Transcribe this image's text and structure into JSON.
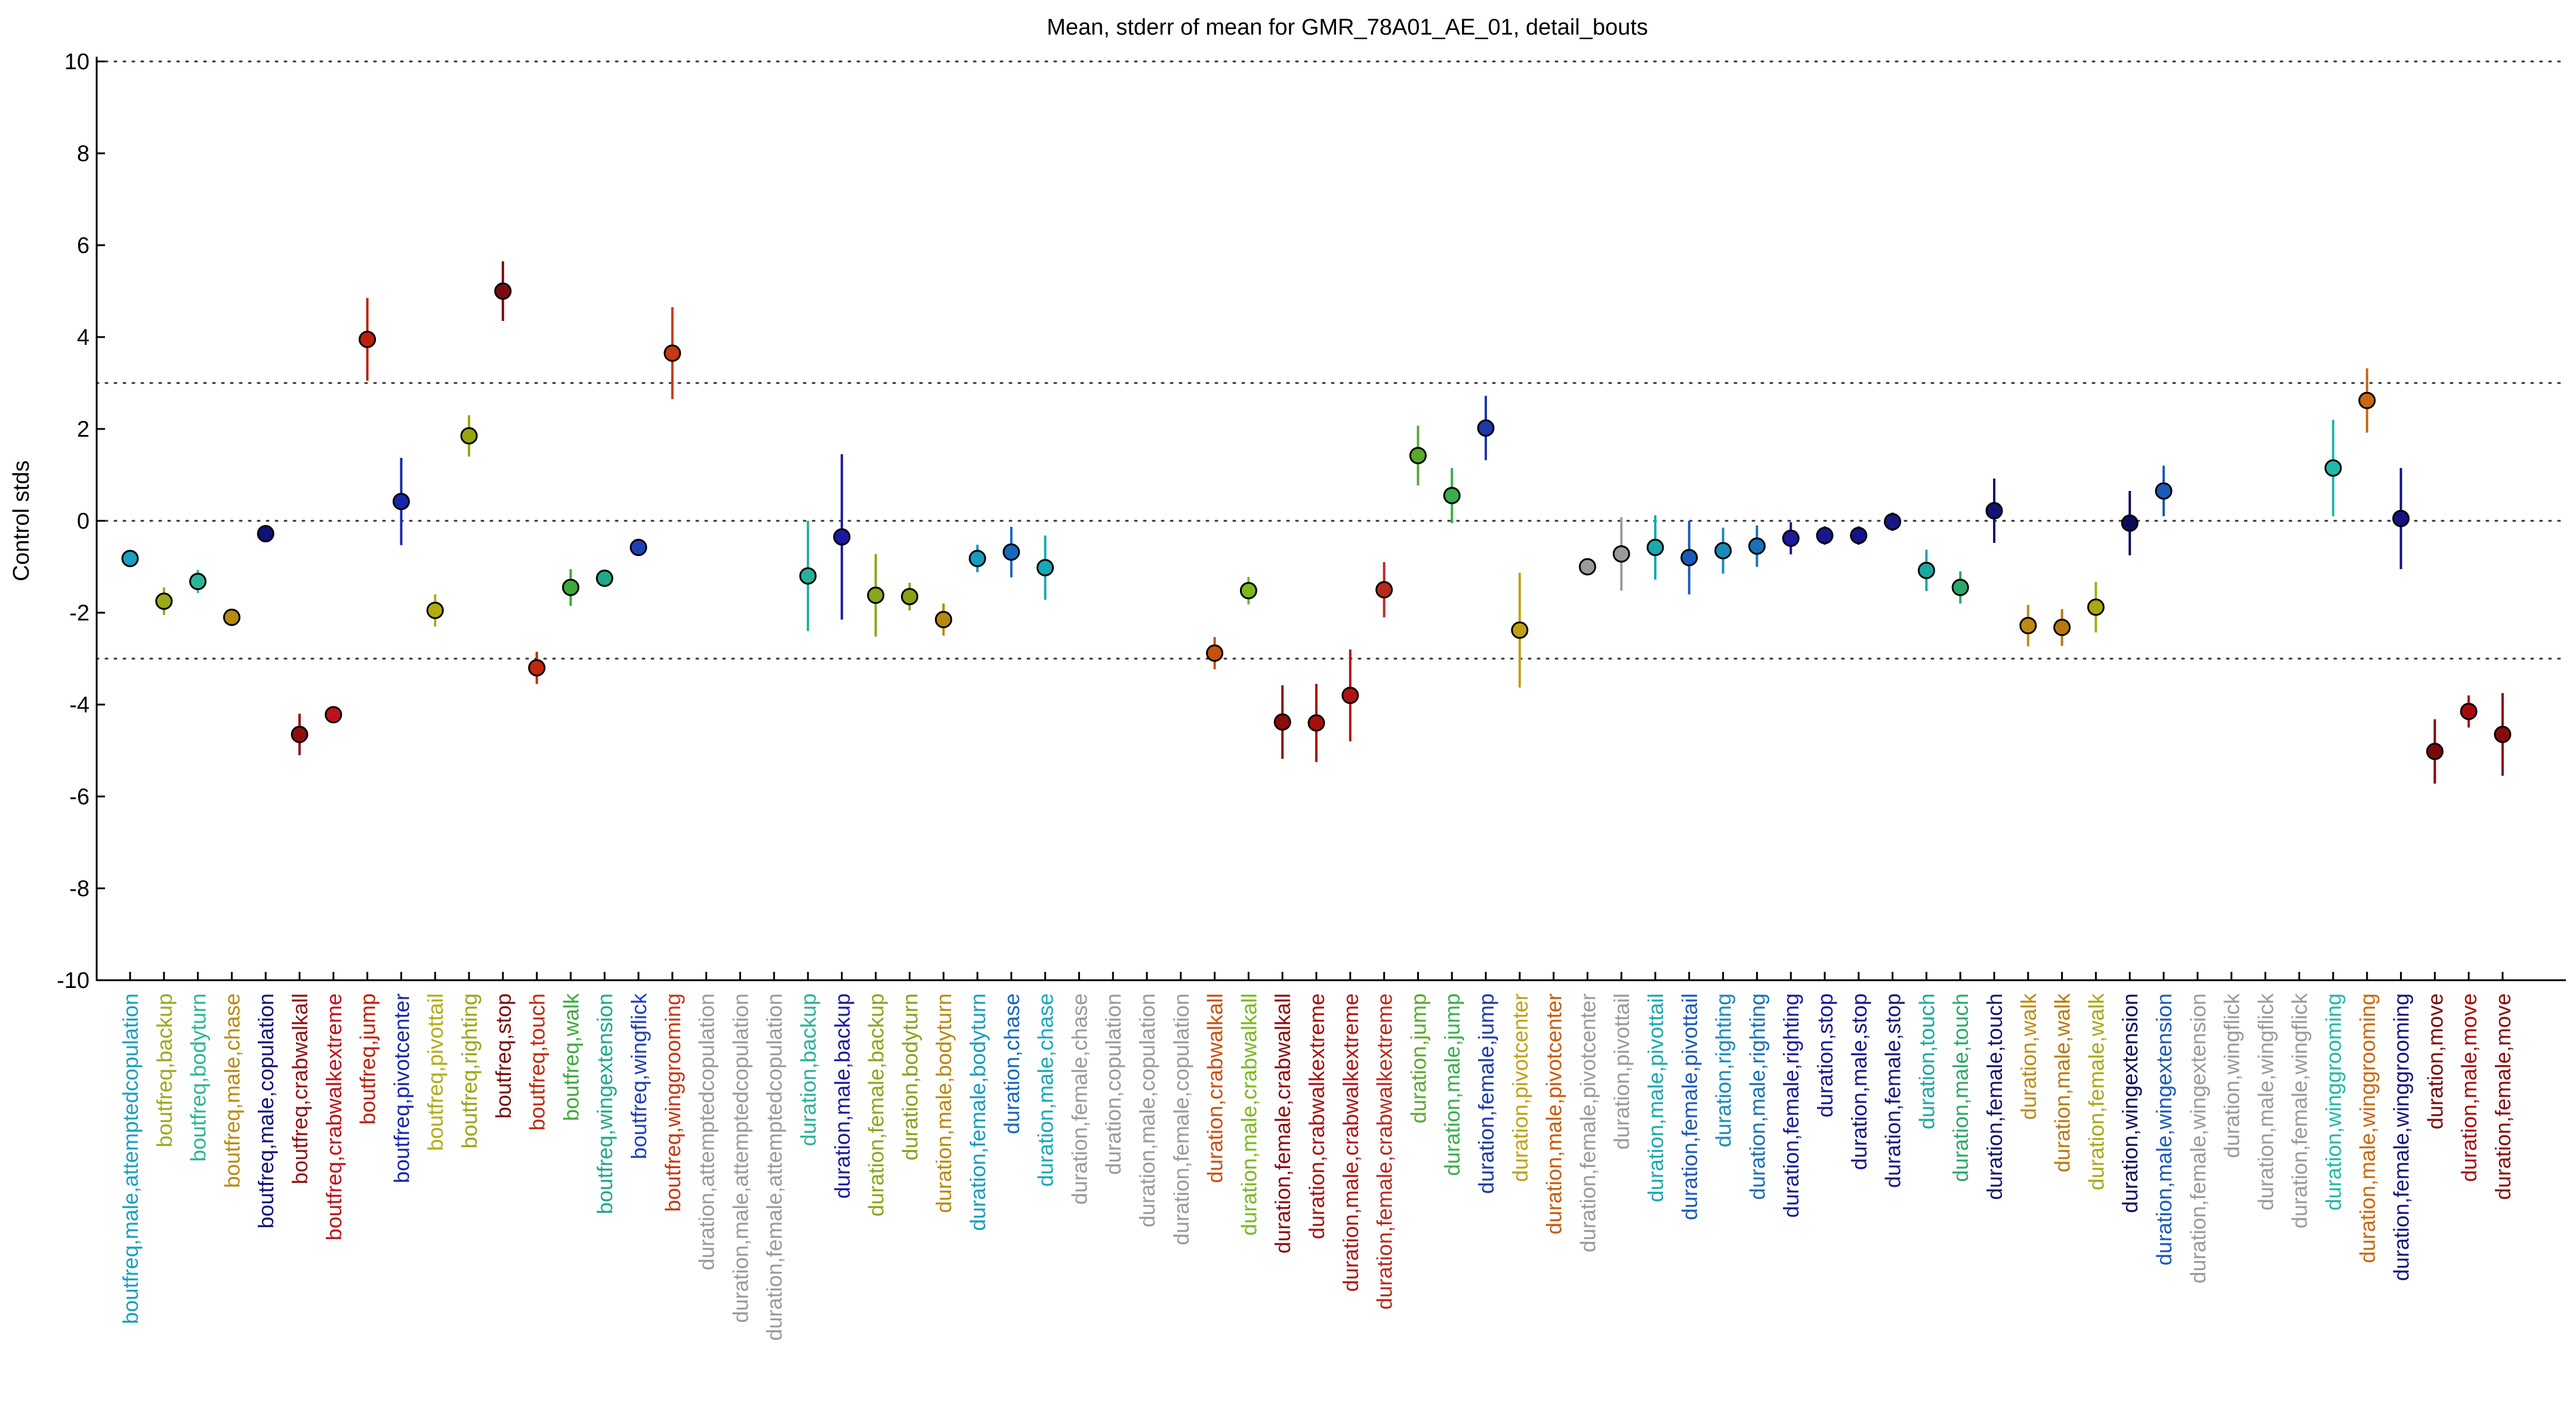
{
  "chart_data": {
    "type": "scatter",
    "title": "Mean, stderr of mean for GMR_78A01_AE_01, detail_bouts",
    "ylabel": "Control stds",
    "ylim": [
      -10,
      10
    ],
    "yticks": [
      10,
      8,
      6,
      4,
      2,
      0,
      -2,
      -4,
      -6,
      -8,
      -10
    ],
    "hlines": [
      10,
      3,
      0,
      -3,
      -10
    ],
    "legend": "none",
    "categories": [
      "boutfreq,male,attemptedcopulation",
      "boutfreq,backup",
      "boutfreq,bodyturn",
      "boutfreq,male,chase",
      "boutfreq,male,copulation",
      "boutfreq,crabwalkall",
      "boutfreq,crabwalkextreme",
      "boutfreq,jump",
      "boutfreq,pivotcenter",
      "boutfreq,pivottail",
      "boutfreq,righting",
      "boutfreq,stop",
      "boutfreq,touch",
      "boutfreq,walk",
      "boutfreq,wingextension",
      "boutfreq,wingflick",
      "boutfreq,winggrooming",
      "duration,attemptedcopulation",
      "duration,male,attemptedcopulation",
      "duration,female,attemptedcopulation",
      "duration,backup",
      "duration,male,backup",
      "duration,female,backup",
      "duration,bodyturn",
      "duration,male,bodyturn",
      "duration,female,bodyturn",
      "duration,chase",
      "duration,male,chase",
      "duration,female,chase",
      "duration,copulation",
      "duration,male,copulation",
      "duration,female,copulation",
      "duration,crabwalkall",
      "duration,male,crabwalkall",
      "duration,female,crabwalkall",
      "duration,crabwalkextreme",
      "duration,male,crabwalkextreme",
      "duration,female,crabwalkextreme",
      "duration,jump",
      "duration,male,jump",
      "duration,female,jump",
      "duration,pivotcenter",
      "duration,male,pivotcenter",
      "duration,female,pivotcenter",
      "duration,pivottail",
      "duration,male,pivottail",
      "duration,female,pivottail",
      "duration,righting",
      "duration,male,righting",
      "duration,female,righting",
      "duration,stop",
      "duration,male,stop",
      "duration,female,stop",
      "duration,touch",
      "duration,male,touch",
      "duration,female,touch",
      "duration,walk",
      "duration,male,walk",
      "duration,female,walk",
      "duration,wingextension",
      "duration,male,wingextension",
      "duration,female,wingextension",
      "duration,wingflick",
      "duration,male,wingflick",
      "duration,female,wingflick",
      "duration,winggrooming",
      "duration,male,winggrooming",
      "duration,female,winggrooming",
      "duration,move",
      "duration,male,move",
      "duration,female,move"
    ],
    "colors": [
      "#1a9fbf",
      "#9aaa1a",
      "#2bb597",
      "#b88a12",
      "#10107a",
      "#8f0f0f",
      "#c0101c",
      "#c01f0a",
      "#1628a8",
      "#b3ab12",
      "#99a612",
      "#7a0c0c",
      "#c0290c",
      "#3caa3a",
      "#1fa88a",
      "#2040b8",
      "#c33a14",
      "#9a9a9a",
      "#9a9a9a",
      "#9a9a9a",
      "#2ab09a",
      "#1a1aa0",
      "#86a81a",
      "#8aa018",
      "#b88812",
      "#1a9ac0",
      "#1768b8",
      "#17a8b8",
      "#9a9a9a",
      "#9a9a9a",
      "#9a9a9a",
      "#9a9a9a",
      "#c8500e",
      "#7ab81e",
      "#8c0b0b",
      "#a80e0e",
      "#b01414",
      "#b82a1c",
      "#5aa82e",
      "#3aae4c",
      "#1a3aa8",
      "#c0a012",
      "#c85a0a",
      "#9a9a9a",
      "#9a9a9a",
      "#1aa8b0",
      "#1a5ab8",
      "#1a8ab8",
      "#1a70b8",
      "#1a1a9c",
      "#181890",
      "#141488",
      "#181880",
      "#1aa8a0",
      "#2aa868",
      "#141470",
      "#c08a10",
      "#b8780e",
      "#a8a812",
      "#0c0c5c",
      "#1a5ab8",
      "#9a9a9a",
      "#9a9a9a",
      "#9a9a9a",
      "#9a9a9a",
      "#22b8a8",
      "#c86810",
      "#14147c",
      "#7a0a0a",
      "#a80a0a",
      "#8a0a0a"
    ],
    "series": [
      {
        "name": "mean",
        "values": [
          -0.82,
          -1.75,
          -1.32,
          -2.1,
          -0.28,
          -4.65,
          -4.22,
          3.95,
          0.42,
          -1.95,
          1.85,
          5.0,
          -3.2,
          -1.45,
          -1.25,
          -0.58,
          3.65,
          null,
          null,
          null,
          -1.2,
          -0.35,
          -1.62,
          -1.65,
          -2.15,
          -0.82,
          -0.68,
          -1.02,
          null,
          null,
          null,
          null,
          -2.88,
          -1.52,
          -4.38,
          -4.4,
          -3.8,
          -1.5,
          1.42,
          0.55,
          2.02,
          -2.38,
          null,
          -1.0,
          -0.72,
          -0.58,
          -0.8,
          -0.65,
          -0.55,
          -0.38,
          -0.32,
          -0.32,
          -0.02,
          -1.08,
          -1.45,
          0.22,
          -2.28,
          -2.32,
          -1.88,
          -0.05,
          0.65,
          null,
          null,
          null,
          null,
          1.15,
          2.62,
          0.05,
          -5.02,
          -4.15,
          -4.65
        ]
      },
      {
        "name": "stderr",
        "values": [
          0.1,
          0.3,
          0.25,
          0.15,
          0.1,
          0.45,
          0.15,
          0.9,
          0.95,
          0.35,
          0.45,
          0.65,
          0.35,
          0.4,
          0.15,
          0.15,
          1.0,
          null,
          null,
          null,
          1.2,
          1.8,
          0.9,
          0.3,
          0.35,
          0.3,
          0.55,
          0.7,
          null,
          null,
          null,
          null,
          0.35,
          0.3,
          0.8,
          0.85,
          1.0,
          0.6,
          0.65,
          0.6,
          0.7,
          1.25,
          null,
          0.1,
          0.8,
          0.7,
          0.8,
          0.5,
          0.45,
          0.35,
          0.2,
          0.2,
          0.2,
          0.45,
          0.35,
          0.7,
          0.45,
          0.4,
          0.55,
          0.7,
          0.55,
          null,
          null,
          null,
          null,
          1.05,
          0.7,
          1.1,
          0.7,
          0.35,
          0.9
        ]
      }
    ]
  }
}
